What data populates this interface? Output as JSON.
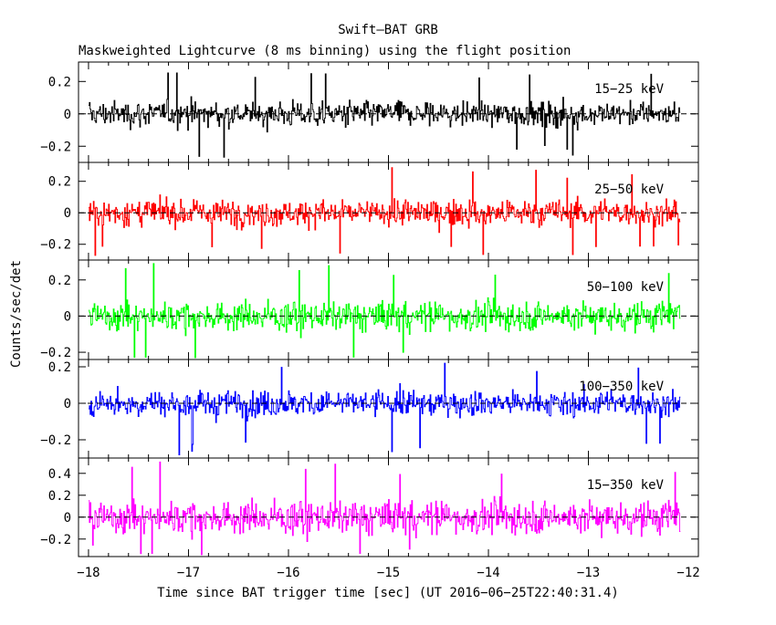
{
  "title": "Swift—BAT GRB",
  "subtitle": "Maskweighted Lightcurve (8 ms binning) using the flight position",
  "chart_data": {
    "type": "line",
    "xlabel": "Time since BAT trigger time [sec] (UT 2016−06−25T22:40:31.4)",
    "ylabel": "Counts/sec/det",
    "xlim": [
      -18.1,
      -11.9
    ],
    "x_ticks": [
      -18,
      -17,
      -16,
      -15,
      -14,
      -13,
      -12
    ],
    "x_tick_labels": [
      "−18",
      "−17",
      "−16",
      "−15",
      "−14",
      "−13",
      "−12"
    ],
    "x_range": [
      -18.0,
      -12.08
    ],
    "bin_width": 0.008,
    "grid": false,
    "panels": [
      {
        "label": "15−25 keV",
        "color": "#000000",
        "ylim": [
          -0.3,
          0.32
        ],
        "y_ticks": [
          -0.2,
          0,
          0.2
        ],
        "y_tick_labels": [
          "−0.2",
          "0",
          "0.2"
        ],
        "noise_sd": 0.07,
        "spike_max": 0.3,
        "spike_min": -0.27
      },
      {
        "label": "25−50 keV",
        "color": "#ff0000",
        "ylim": [
          -0.3,
          0.32
        ],
        "y_ticks": [
          -0.2,
          0,
          0.2
        ],
        "y_tick_labels": [
          "−0.2",
          "0",
          "0.2"
        ],
        "noise_sd": 0.075,
        "spike_max": 0.3,
        "spike_min": -0.28
      },
      {
        "label": "50−100 keV",
        "color": "#00ff00",
        "ylim": [
          -0.24,
          0.31
        ],
        "y_ticks": [
          -0.2,
          0,
          0.2
        ],
        "y_tick_labels": [
          "−0.2",
          "0",
          "0.2"
        ],
        "noise_sd": 0.075,
        "spike_max": 0.3,
        "spike_min": -0.24
      },
      {
        "label": "100−350 keV",
        "color": "#0000ff",
        "ylim": [
          -0.3,
          0.24
        ],
        "y_ticks": [
          -0.2,
          0,
          0.2
        ],
        "y_tick_labels": [
          "−0.2",
          "0",
          "0.2"
        ],
        "noise_sd": 0.065,
        "spike_max": 0.24,
        "spike_min": -0.29
      },
      {
        "label": "15−350 keV",
        "color": "#ff00ff",
        "ylim": [
          -0.36,
          0.54
        ],
        "y_ticks": [
          -0.2,
          0,
          0.2,
          0.4
        ],
        "y_tick_labels": [
          "−0.2",
          "0",
          "0.2",
          "0.4"
        ],
        "noise_sd": 0.14,
        "spike_max": 0.52,
        "spike_min": -0.35
      }
    ]
  }
}
